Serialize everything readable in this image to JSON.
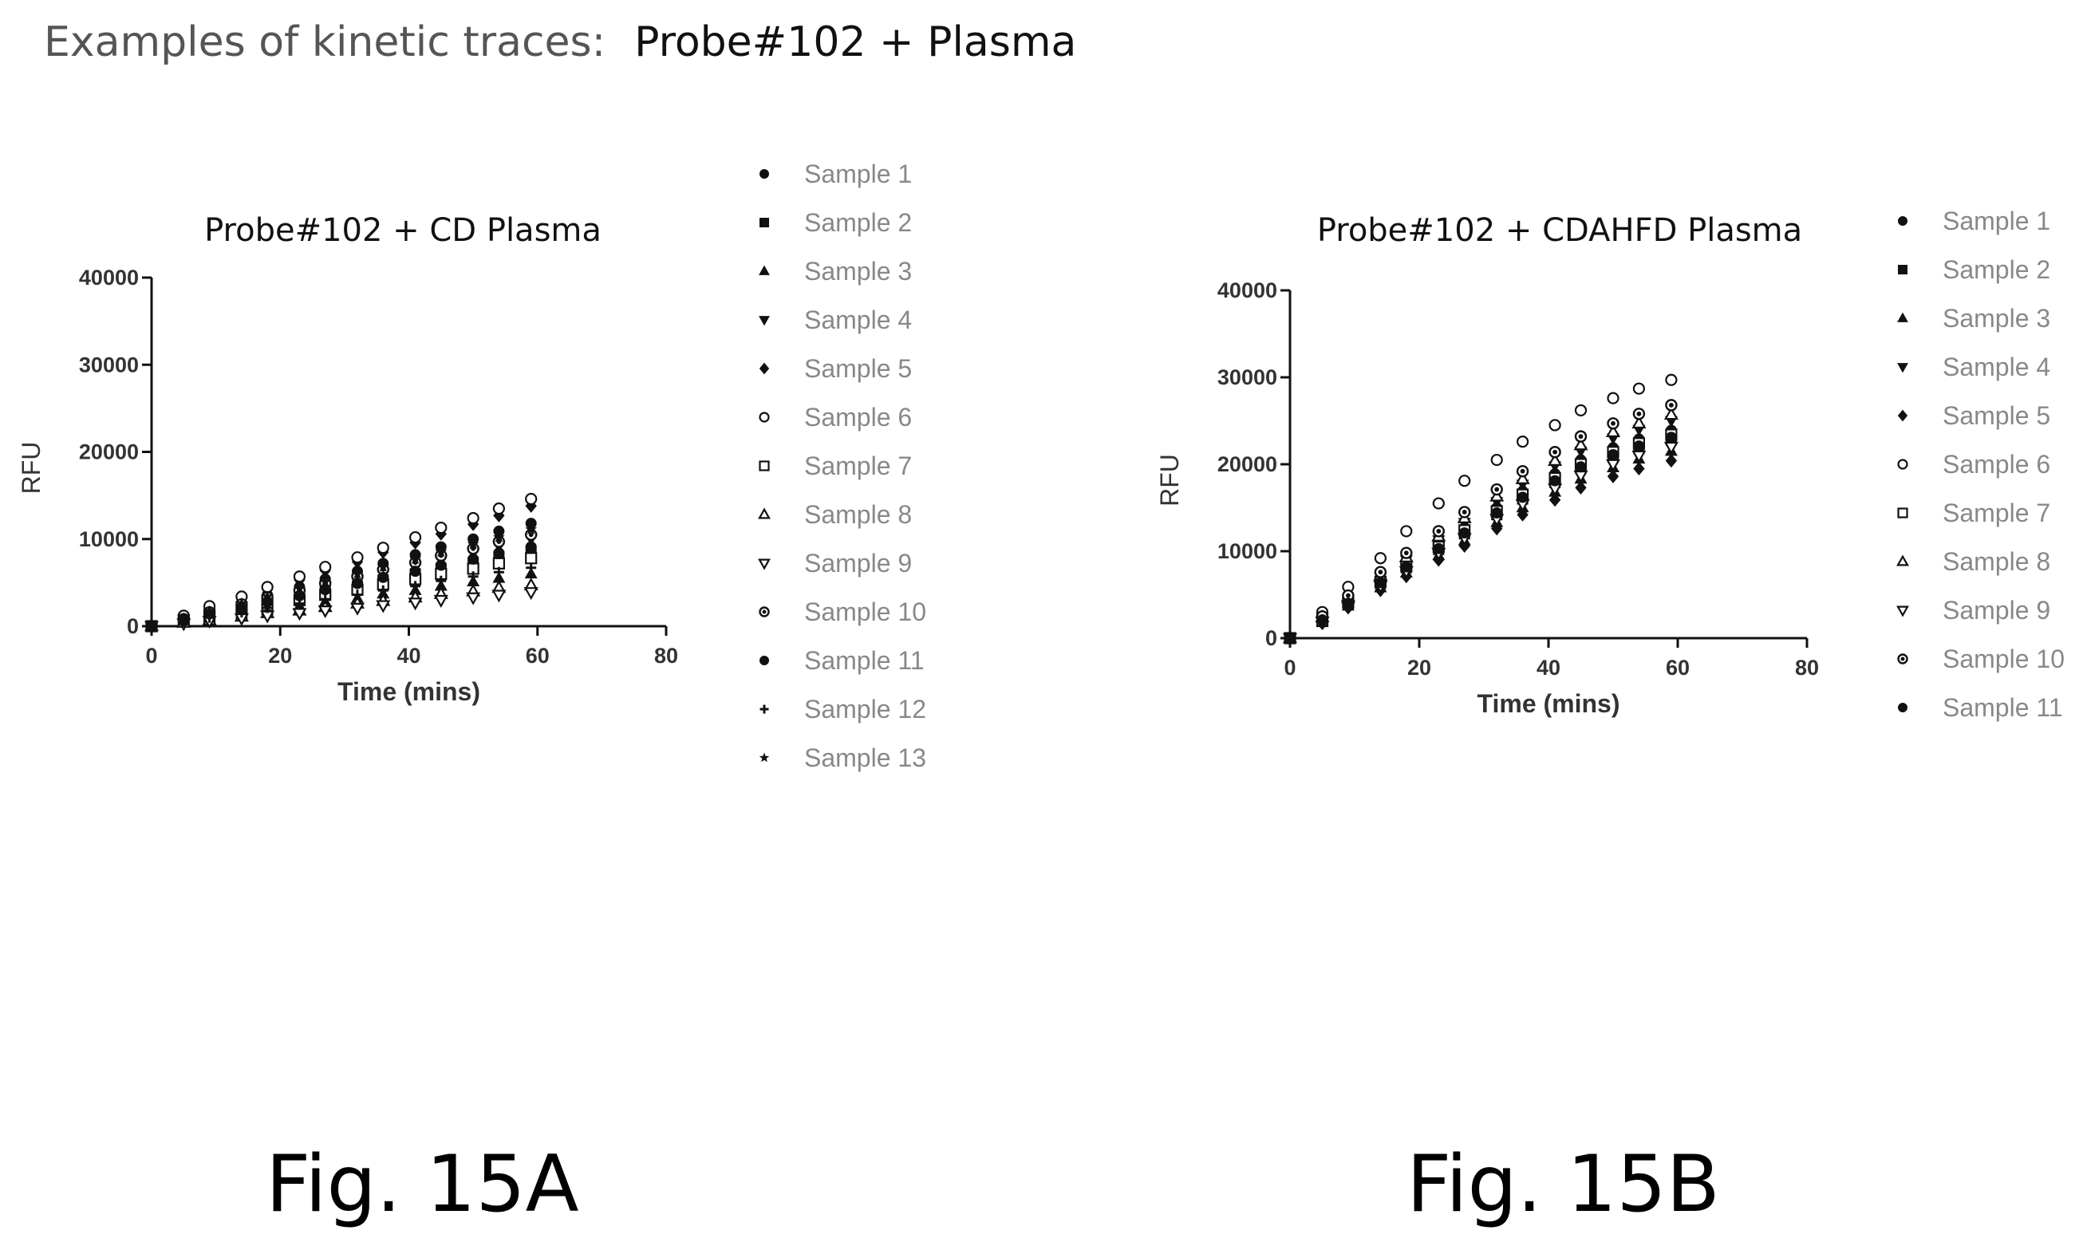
{
  "header": {
    "lead": "Examples of kinetic traces:",
    "probe": "Probe#102 + Plasma"
  },
  "figures": {
    "a_label": "Fig. 15A",
    "b_label": "Fig. 15B"
  },
  "chart_data": [
    {
      "type": "scatter",
      "title": "Probe#102 + CD Plasma",
      "xlabel": "Time (mins)",
      "ylabel": "RFU",
      "xlim": [
        0,
        80
      ],
      "ylim": [
        0,
        40000
      ],
      "xticks": [
        0,
        20,
        40,
        60,
        80
      ],
      "yticks": [
        0,
        10000,
        20000,
        30000,
        40000
      ],
      "legend_position": "right",
      "x": [
        0,
        5,
        9,
        14,
        18,
        23,
        27,
        32,
        36,
        41,
        45,
        50,
        54,
        59
      ],
      "series": [
        {
          "name": "Sample 1",
          "marker": "circle",
          "values": [
            0,
            900,
            1800,
            2700,
            3600,
            4500,
            5400,
            6300,
            7200,
            8200,
            9100,
            10000,
            10900,
            11800
          ]
        },
        {
          "name": "Sample 2",
          "marker": "square",
          "values": [
            0,
            700,
            1300,
            2000,
            2600,
            3300,
            4000,
            4600,
            5300,
            6000,
            6600,
            7300,
            8000,
            8600
          ]
        },
        {
          "name": "Sample 3",
          "marker": "triangle-up",
          "values": [
            0,
            500,
            900,
            1400,
            1800,
            2300,
            2800,
            3200,
            3700,
            4100,
            4600,
            5100,
            5500,
            6000
          ]
        },
        {
          "name": "Sample 4",
          "marker": "triangle-down",
          "values": [
            0,
            800,
            1500,
            2300,
            3100,
            3800,
            4600,
            5400,
            6100,
            6900,
            7700,
            8400,
            9200,
            10000
          ]
        },
        {
          "name": "Sample 5",
          "marker": "diamond",
          "values": [
            0,
            1100,
            2100,
            3200,
            4200,
            5300,
            6400,
            7400,
            8500,
            9600,
            10600,
            11700,
            12700,
            13800
          ]
        },
        {
          "name": "Sample 6",
          "marker": "circle-open",
          "values": [
            0,
            1200,
            2300,
            3400,
            4500,
            5700,
            6800,
            7900,
            9000,
            10200,
            11300,
            12400,
            13500,
            14600
          ]
        },
        {
          "name": "Sample 7",
          "marker": "square-open",
          "values": [
            0,
            600,
            1200,
            1800,
            2400,
            3000,
            3600,
            4200,
            4800,
            5400,
            6000,
            6600,
            7200,
            7800
          ]
        },
        {
          "name": "Sample 8",
          "marker": "triangle-up-open",
          "values": [
            0,
            400,
            700,
            1100,
            1500,
            1800,
            2200,
            2600,
            2900,
            3300,
            3700,
            4000,
            4400,
            4700
          ]
        },
        {
          "name": "Sample 9",
          "marker": "triangle-down-open",
          "values": [
            0,
            300,
            600,
            900,
            1200,
            1500,
            1800,
            2100,
            2400,
            2700,
            3000,
            3300,
            3600,
            3900
          ]
        },
        {
          "name": "Sample 10",
          "marker": "circle-dot",
          "values": [
            0,
            800,
            1600,
            2500,
            3300,
            4100,
            4900,
            5700,
            6500,
            7300,
            8100,
            8900,
            9700,
            10500
          ]
        },
        {
          "name": "Sample 11",
          "marker": "circle",
          "values": [
            0,
            700,
            1400,
            2100,
            2800,
            3500,
            4200,
            4900,
            5600,
            6300,
            7000,
            7700,
            8400,
            9100
          ]
        },
        {
          "name": "Sample 12",
          "marker": "plus",
          "values": [
            0,
            500,
            1000,
            1600,
            2100,
            2600,
            3100,
            3600,
            4100,
            4600,
            5200,
            5700,
            6200,
            6700
          ]
        },
        {
          "name": "Sample 13",
          "marker": "star",
          "values": [
            0,
            900,
            1700,
            2600,
            3400,
            4300,
            5100,
            6000,
            6800,
            7700,
            8500,
            9400,
            10200,
            11100
          ]
        }
      ]
    },
    {
      "type": "scatter",
      "title": "Probe#102 + CDAHFD Plasma",
      "xlabel": "Time (mins)",
      "ylabel": "RFU",
      "xlim": [
        0,
        80
      ],
      "ylim": [
        0,
        40000
      ],
      "xticks": [
        0,
        20,
        40,
        60,
        80
      ],
      "yticks": [
        0,
        10000,
        20000,
        30000,
        40000
      ],
      "legend_position": "right",
      "x": [
        0,
        5,
        9,
        14,
        18,
        23,
        27,
        32,
        36,
        41,
        45,
        50,
        54,
        59
      ],
      "series": [
        {
          "name": "Sample 1",
          "marker": "circle",
          "values": [
            0,
            2200,
            4200,
            6700,
            8600,
            10800,
            12700,
            15000,
            16900,
            18900,
            20500,
            21900,
            22900,
            23900
          ]
        },
        {
          "name": "Sample 2",
          "marker": "square",
          "values": [
            0,
            2000,
            4000,
            6300,
            8100,
            10200,
            12000,
            14200,
            16000,
            17900,
            19500,
            20800,
            21800,
            22800
          ]
        },
        {
          "name": "Sample 3",
          "marker": "triangle-up",
          "values": [
            0,
            1800,
            3700,
            5800,
            7500,
            9500,
            11200,
            13300,
            15000,
            16800,
            18300,
            19600,
            20600,
            21500
          ]
        },
        {
          "name": "Sample 4",
          "marker": "triangle-down",
          "values": [
            0,
            2300,
            4400,
            7000,
            9000,
            11300,
            13300,
            15700,
            17700,
            19800,
            21500,
            23000,
            24000,
            25000
          ]
        },
        {
          "name": "Sample 5",
          "marker": "diamond",
          "values": [
            0,
            1700,
            3500,
            5500,
            7100,
            9000,
            10600,
            12600,
            14200,
            15900,
            17300,
            18600,
            19500,
            20400
          ]
        },
        {
          "name": "Sample 6",
          "marker": "circle-open",
          "values": [
            0,
            3000,
            5900,
            9200,
            12300,
            15500,
            18100,
            20500,
            22600,
            24500,
            26200,
            27600,
            28700,
            29700
          ]
        },
        {
          "name": "Sample 7",
          "marker": "square-open",
          "values": [
            0,
            2100,
            4100,
            6500,
            8300,
            10500,
            12400,
            14600,
            16500,
            18400,
            20000,
            21400,
            22400,
            23400
          ]
        },
        {
          "name": "Sample 8",
          "marker": "triangle-up-open",
          "values": [
            0,
            2400,
            4600,
            7200,
            9300,
            11700,
            13800,
            16300,
            18300,
            20400,
            22200,
            23700,
            24700,
            25700
          ]
        },
        {
          "name": "Sample 9",
          "marker": "triangle-down-open",
          "values": [
            0,
            1900,
            3800,
            6000,
            7700,
            9800,
            11500,
            13700,
            15400,
            17200,
            18700,
            20000,
            21000,
            22000
          ]
        },
        {
          "name": "Sample 10",
          "marker": "circle-dot",
          "values": [
            0,
            2500,
            4900,
            7600,
            9800,
            12300,
            14500,
            17100,
            19200,
            21400,
            23200,
            24700,
            25800,
            26800
          ]
        },
        {
          "name": "Sample 11",
          "marker": "circle",
          "values": [
            0,
            2100,
            4000,
            6400,
            8200,
            10300,
            12100,
            14400,
            16200,
            18100,
            19700,
            21100,
            22100,
            23100
          ]
        }
      ]
    }
  ]
}
